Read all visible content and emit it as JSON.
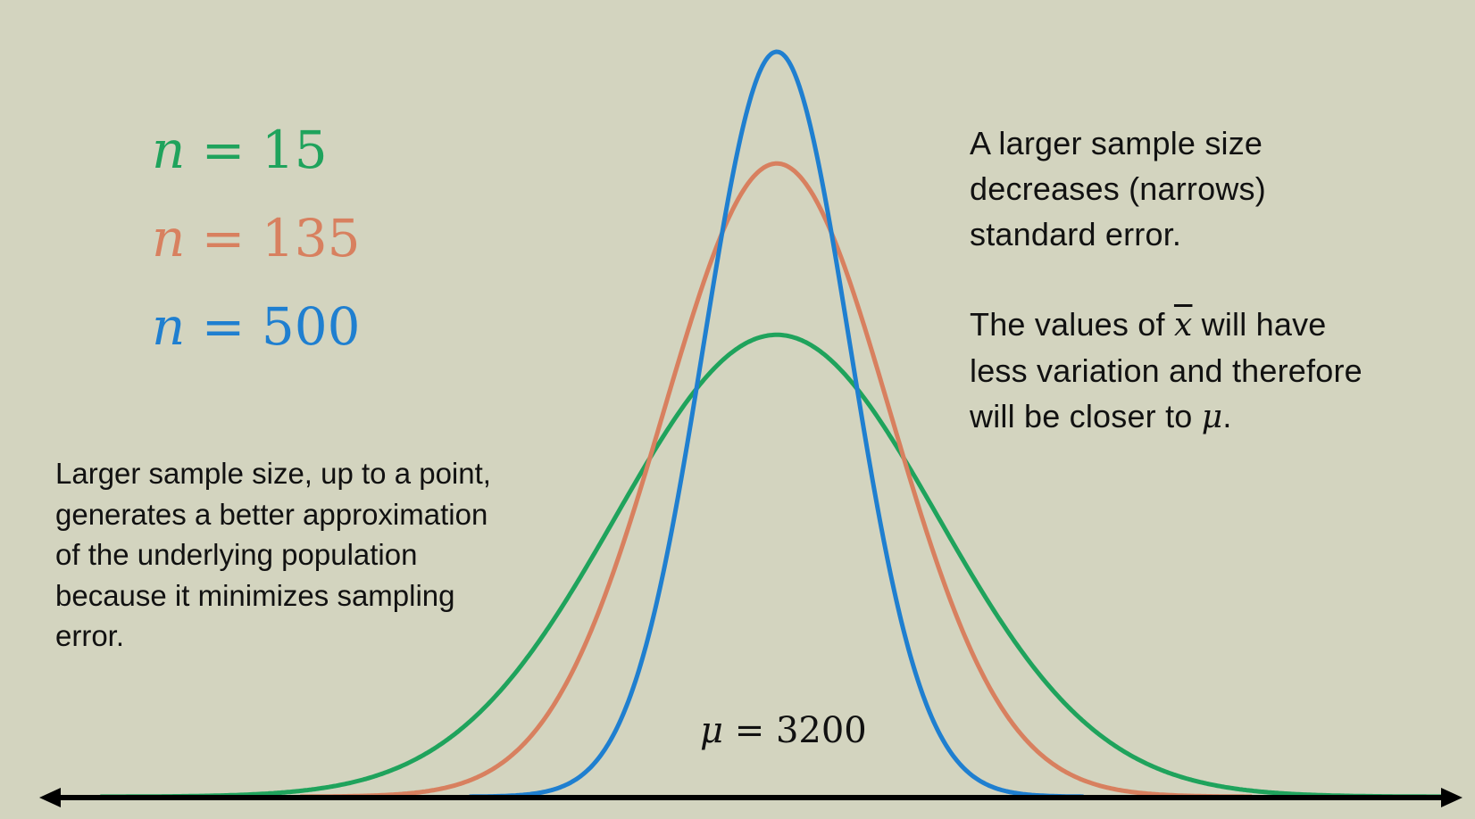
{
  "legend": [
    {
      "var": "n",
      "eq": " = ",
      "value": "15",
      "color": "#1fa35c"
    },
    {
      "var": "n",
      "eq": " = ",
      "value": "135",
      "color": "#d8805f"
    },
    {
      "var": "n",
      "eq": " = ",
      "value": "500",
      "color": "#1f7fd0"
    }
  ],
  "notes": {
    "right1": "A larger sample size\ndecreases (narrows)\nstandard error.",
    "right2_part1": "The values of ",
    "right2_xbar": "x",
    "right2_part2": " will have\nless variation and therefore\nwill be closer to ",
    "right2_mu": "μ",
    "right2_part3": ".",
    "left": "Larger sample size, up to a point,\ngenerates a better approximation\nof the underlying population\nbecause it minimizes sampling\nerror."
  },
  "mean_label": {
    "var": "μ",
    "eq": " = ",
    "value": "3200"
  },
  "curves": [
    {
      "n": 15,
      "relative_sd": 2.2,
      "relative_peak": 0.62,
      "color": "#1fa35c"
    },
    {
      "n": 135,
      "relative_sd": 1.55,
      "relative_peak": 0.85,
      "color": "#d8805f"
    },
    {
      "n": 500,
      "relative_sd": 1.0,
      "relative_peak": 1.0,
      "color": "#1f7fd0"
    }
  ],
  "axis_color": "#000000"
}
